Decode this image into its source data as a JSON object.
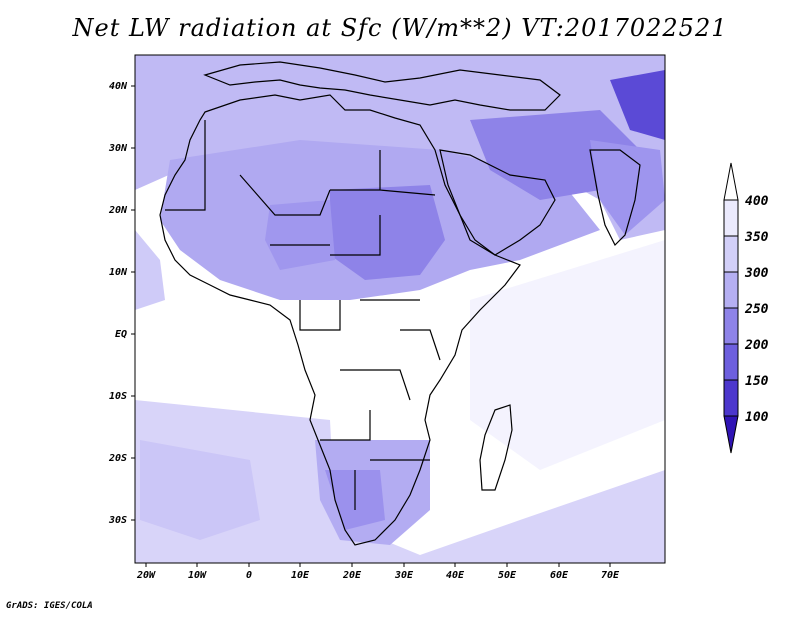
{
  "title": "Net LW radiation at Sfc (W/m**2) VT:2017022521",
  "credit": "GrADS: IGES/COLA",
  "map": {
    "lat_labels": [
      "40N",
      "30N",
      "20N",
      "10N",
      "EQ",
      "10S",
      "20S",
      "30S"
    ],
    "lon_labels": [
      "20W",
      "10W",
      "0",
      "10E",
      "20E",
      "30E",
      "40E",
      "50E",
      "60E",
      "70E"
    ],
    "background_color": "#ffffff",
    "land_tint": "#c8c6f6",
    "desert_tint": "#9d95ec"
  },
  "colorbar": {
    "labels": [
      "400",
      "350",
      "300",
      "250",
      "200",
      "150",
      "100"
    ],
    "colors": [
      "#ebeafd",
      "#d2cff8",
      "#b5aff2",
      "#8e83e8",
      "#6d5fde",
      "#4c37cd",
      "#3014b5"
    ]
  }
}
